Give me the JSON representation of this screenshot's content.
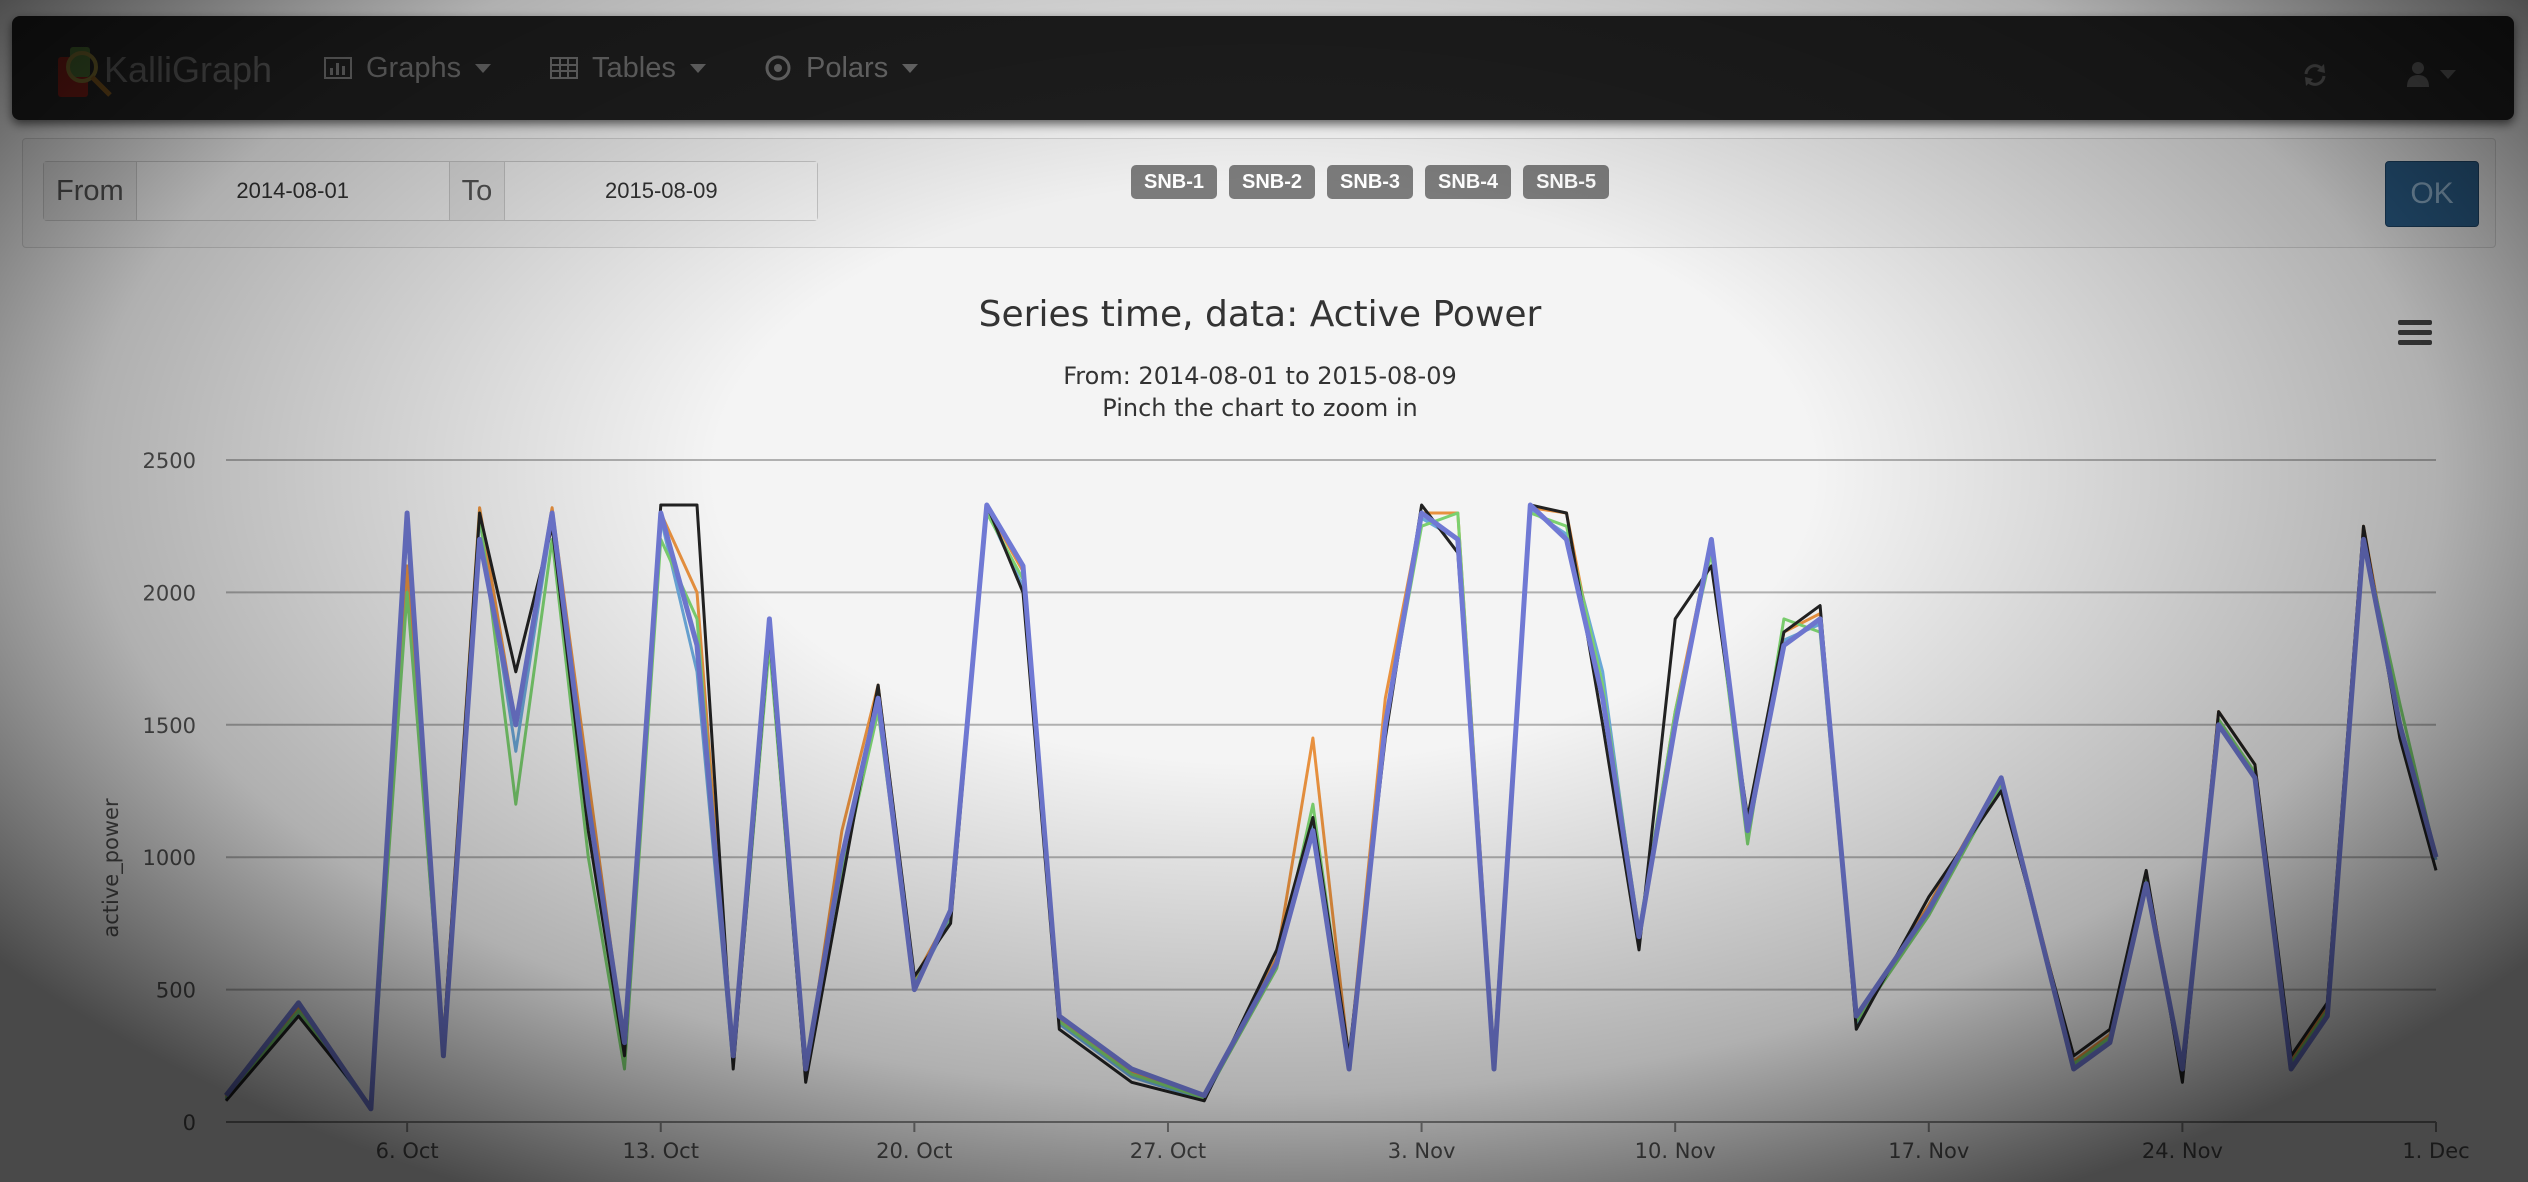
{
  "app": {
    "brand": "KalliGraph"
  },
  "nav": {
    "items": [
      {
        "label": "Graphs",
        "icon": "bar-chart-icon"
      },
      {
        "label": "Tables",
        "icon": "table-icon"
      },
      {
        "label": "Polars",
        "icon": "target-icon"
      }
    ],
    "refresh_icon": "refresh-icon",
    "user_icon": "user-icon"
  },
  "filter": {
    "from_label": "From",
    "from_value": "2014-08-01",
    "to_label": "To",
    "to_value": "2015-08-09",
    "series_badges": [
      "SNB-1",
      "SNB-2",
      "SNB-3",
      "SNB-4",
      "SNB-5"
    ],
    "ok_label": "OK"
  },
  "colors": {
    "series": [
      "#7079d4",
      "#222222",
      "#7bd06f",
      "#e8913f",
      "#6aa7d8"
    ],
    "ok_button": "#2a5d88",
    "badge": "#7b7b7b"
  },
  "chart_data": {
    "type": "line",
    "title": "Series time, data: Active Power",
    "subtitle_lines": [
      "From: 2014-08-01 to 2015-08-09",
      "Pinch the chart to zoom in"
    ],
    "xlabel": "",
    "ylabel": "active_power",
    "x_ticks": [
      "6. Oct",
      "13. Oct",
      "20. Oct",
      "27. Oct",
      "3. Nov",
      "10. Nov",
      "17. Nov",
      "24. Nov",
      "1. Dec"
    ],
    "x_range": [
      "2014-10-01",
      "2014-12-01"
    ],
    "y_ticks": [
      0,
      500,
      1000,
      1500,
      2000,
      2500
    ],
    "ylim": [
      0,
      2500
    ],
    "grid": true,
    "legend": "none",
    "x_dates": [
      "2014-10-01",
      "2014-10-03",
      "2014-10-05",
      "2014-10-06",
      "2014-10-07",
      "2014-10-08",
      "2014-10-09",
      "2014-10-10",
      "2014-10-11",
      "2014-10-12",
      "2014-10-13",
      "2014-10-14",
      "2014-10-15",
      "2014-10-16",
      "2014-10-17",
      "2014-10-18",
      "2014-10-19",
      "2014-10-20",
      "2014-10-21",
      "2014-10-22",
      "2014-10-23",
      "2014-10-24",
      "2014-10-26",
      "2014-10-28",
      "2014-10-30",
      "2014-10-31",
      "2014-11-01",
      "2014-11-02",
      "2014-11-03",
      "2014-11-04",
      "2014-11-05",
      "2014-11-06",
      "2014-11-07",
      "2014-11-08",
      "2014-11-09",
      "2014-11-10",
      "2014-11-11",
      "2014-11-12",
      "2014-11-13",
      "2014-11-14",
      "2014-11-15",
      "2014-11-17",
      "2014-11-19",
      "2014-11-21",
      "2014-11-22",
      "2014-11-23",
      "2014-11-24",
      "2014-11-25",
      "2014-11-26",
      "2014-11-27",
      "2014-11-28",
      "2014-11-29",
      "2014-11-30",
      "2014-12-01"
    ],
    "series": [
      {
        "values": [
          100,
          450,
          50,
          2300,
          250,
          2200,
          1500,
          2300,
          1200,
          300,
          2300,
          1800,
          250,
          1900,
          200,
          1000,
          1600,
          500,
          800,
          2330,
          2100,
          400,
          200,
          100,
          600,
          1100,
          200,
          1500,
          2300,
          2200,
          200,
          2330,
          2200,
          1600,
          700,
          1500,
          2200,
          1100,
          1800,
          1900,
          400,
          800,
          1300,
          200,
          300,
          900,
          200,
          1500,
          1300,
          200,
          400,
          2200,
          1500,
          1000
        ]
      },
      {
        "values": [
          80,
          400,
          60,
          2250,
          300,
          2300,
          1700,
          2250,
          1100,
          250,
          2330,
          2330,
          200,
          1850,
          150,
          900,
          1650,
          550,
          750,
          2330,
          2000,
          350,
          150,
          80,
          650,
          1150,
          250,
          1450,
          2330,
          2150,
          250,
          2330,
          2300,
          1500,
          650,
          1900,
          2100,
          1150,
          1850,
          1950,
          350,
          850,
          1250,
          250,
          350,
          950,
          150,
          1550,
          1350,
          250,
          450,
          2250,
          1450,
          950
        ]
      },
      {
        "values": [
          90,
          420,
          55,
          2000,
          280,
          2300,
          1200,
          2200,
          1000,
          200,
          2200,
          1900,
          220,
          1800,
          170,
          950,
          1550,
          520,
          780,
          2300,
          2050,
          380,
          180,
          90,
          580,
          1200,
          220,
          1500,
          2250,
          2300,
          220,
          2300,
          2250,
          1650,
          720,
          1550,
          2150,
          1050,
          1900,
          1850,
          380,
          780,
          1280,
          220,
          320,
          920,
          180,
          1520,
          1320,
          220,
          420,
          2200,
          1580,
          1000
        ]
      },
      {
        "values": [
          95,
          430,
          52,
          2100,
          300,
          2320,
          1500,
          2320,
          1300,
          280,
          2300,
          2000,
          240,
          1900,
          180,
          1100,
          1650,
          540,
          790,
          2320,
          2080,
          390,
          190,
          95,
          620,
          1450,
          230,
          1600,
          2300,
          2300,
          230,
          2320,
          2300,
          1600,
          710,
          1550,
          2200,
          1100,
          1850,
          1920,
          390,
          820,
          1300,
          230,
          330,
          940,
          190,
          1550,
          1350,
          230,
          440,
          2250,
          1500,
          1000
        ]
      },
      {
        "values": [
          85,
          410,
          50,
          2050,
          260,
          2280,
          1400,
          2280,
          1150,
          260,
          2280,
          1700,
          210,
          1820,
          160,
          980,
          1580,
          510,
          770,
          2310,
          2020,
          370,
          170,
          85,
          600,
          1120,
          210,
          1480,
          2280,
          2200,
          210,
          2310,
          2220,
          1700,
          690,
          1500,
          2180,
          1080,
          1820,
          1880,
          370,
          800,
          1270,
          210,
          310,
          910,
          170,
          1510,
          1310,
          210,
          410,
          2230,
          1480,
          990
        ]
      }
    ]
  }
}
